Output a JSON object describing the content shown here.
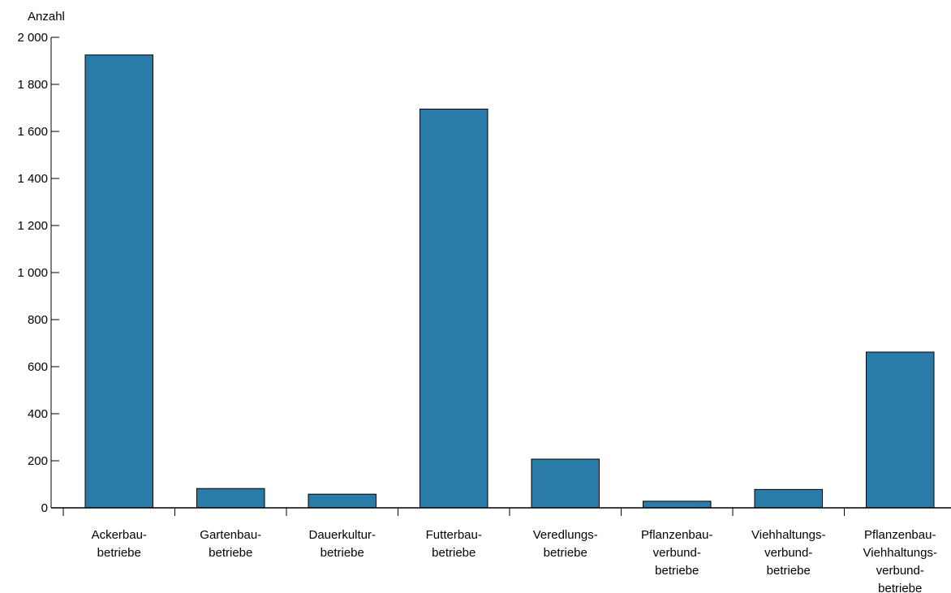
{
  "chart_data": {
    "type": "bar",
    "title": "",
    "xlabel": "",
    "ylabel": "Anzahl",
    "ylim": [
      0,
      2000
    ],
    "yticks": [
      0,
      200,
      400,
      600,
      800,
      1000,
      1200,
      1400,
      1600,
      1800,
      2000
    ],
    "ytick_labels": [
      "0",
      "200",
      "400",
      "600",
      "800",
      "1 000",
      "1 200",
      "1 400",
      "1 600",
      "1 800",
      "2 000"
    ],
    "categories": [
      [
        "Ackerbau-",
        "betriebe"
      ],
      [
        "Gartenbau-",
        "betriebe"
      ],
      [
        "Dauerkultur-",
        "betriebe"
      ],
      [
        "Futterbau-",
        "betriebe"
      ],
      [
        "Veredlungs-",
        "betriebe"
      ],
      [
        "Pflanzenbau-",
        "verbund-",
        "betriebe"
      ],
      [
        "Viehhaltungs-",
        "verbund-",
        "betriebe"
      ],
      [
        "Pflanzenbau-",
        "Viehhaltungs-",
        "verbund-",
        "betriebe"
      ]
    ],
    "values": [
      1925,
      82,
      58,
      1695,
      207,
      28,
      78,
      662
    ],
    "bar_color": "#2b7ba8",
    "grid": false,
    "legend": "none"
  }
}
